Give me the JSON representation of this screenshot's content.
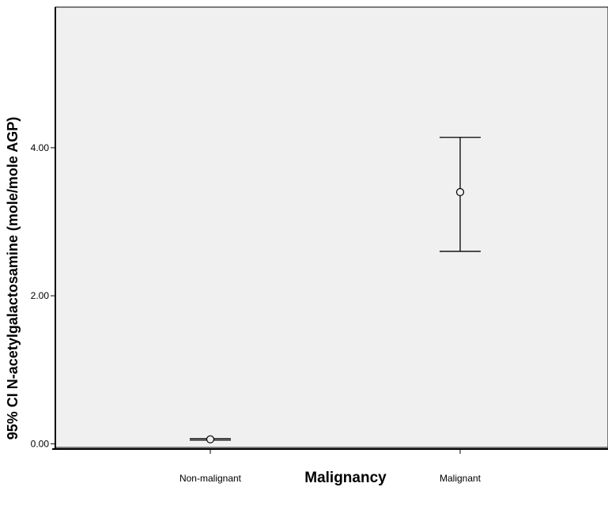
{
  "chart_data": {
    "type": "errorbar",
    "title": "",
    "xlabel": "Malignancy",
    "ylabel": "95% CI N-acetylgalactosamine (mole/mole AGP)",
    "categories": [
      "Non-malignant",
      "Malignant"
    ],
    "points": [
      {
        "category": "Non-malignant",
        "mean": 0.06,
        "lower": 0.05,
        "upper": 0.07
      },
      {
        "category": "Malignant",
        "mean": 3.4,
        "lower": 2.6,
        "upper": 4.14
      }
    ],
    "ylim": [
      -0.05,
      5.9
    ],
    "yticks": [
      0.0,
      2.0,
      4.0
    ],
    "ytick_labels": [
      "0.00",
      "2.00",
      "4.00"
    ],
    "grid": false,
    "legend": "none",
    "colors": {
      "plot_background": "#f0f0f0",
      "axis": "#000000",
      "marker": "#000000"
    }
  }
}
